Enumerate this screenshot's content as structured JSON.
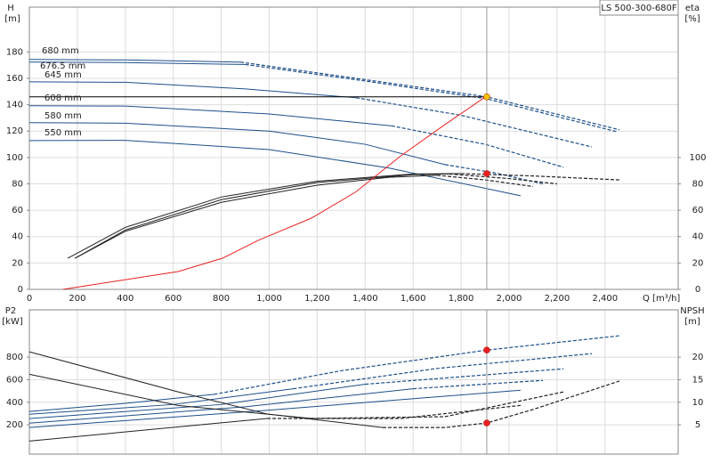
{
  "chart_data": [
    {
      "type": "line",
      "model": "LS 500-300-680F",
      "ylabel": "H",
      "yunit": "[m]",
      "y2label": "eta",
      "y2unit": "[%]",
      "xlabel": "Q [m³/h]",
      "curve_labels": [
        "680 mm",
        "676.5 mm",
        "645 mm",
        "608 mm",
        "580 mm",
        "550 mm"
      ],
      "xlim": [
        0,
        2705
      ],
      "ylim": [
        0,
        214
      ],
      "y2lim": [
        0,
        214
      ],
      "grid": true,
      "xticks": [
        0,
        200,
        400,
        600,
        800,
        {
          "value": 1000,
          "label": "1,000"
        },
        {
          "value": 1200,
          "label": "1,200"
        },
        {
          "value": 1400,
          "label": "1,400"
        },
        {
          "value": 1600,
          "label": "1,600"
        },
        {
          "value": 1800,
          "label": "1,800"
        },
        {
          "value": 2000,
          "label": "2,000"
        },
        {
          "value": 2200,
          "label": "2,200"
        },
        {
          "value": 2400,
          "label": "2,400"
        }
      ],
      "yticks": [
        0,
        20,
        40,
        60,
        80,
        100,
        120,
        140,
        160,
        180
      ],
      "y2ticks": [
        0,
        20,
        40,
        60,
        80,
        100
      ],
      "series": [
        {
          "color": "#1d4f8a",
          "dash": false,
          "x": [
            0,
            400,
            880
          ],
          "values": [
            174.3,
            174,
            172.3
          ]
        },
        {
          "color": "#1d4f8a",
          "dash": true,
          "x": [
            880,
            1362,
            1907,
            2460
          ],
          "values": [
            172.3,
            160,
            146,
            121
          ]
        },
        {
          "color": "#1d4f8a",
          "dash": false,
          "x": [
            0,
            400,
            900
          ],
          "values": [
            172.3,
            172,
            170.5
          ]
        },
        {
          "color": "#1d4f8a",
          "dash": true,
          "x": [
            900,
            1400,
            1907,
            2450
          ],
          "values": [
            170.5,
            158,
            144.5,
            119.5
          ]
        },
        {
          "color": "#1d4f8a",
          "dash": false,
          "x": [
            0,
            400,
            900,
            1362
          ],
          "values": [
            157.4,
            157,
            152,
            145.3
          ]
        },
        {
          "color": "#1d4f8a",
          "dash": true,
          "x": [
            1362,
            1800,
            2345
          ],
          "values": [
            145.3,
            132,
            108
          ]
        },
        {
          "color": "#1d4f8a",
          "dash": false,
          "x": [
            0,
            400,
            1000,
            1510
          ],
          "values": [
            139.2,
            139,
            133,
            124
          ]
        },
        {
          "color": "#1d4f8a",
          "dash": true,
          "x": [
            1510,
            1900,
            2227
          ],
          "values": [
            124,
            110,
            92.6
          ]
        },
        {
          "color": "#1d4f8a",
          "dash": false,
          "x": [
            0,
            400,
            1000,
            1400,
            1733
          ],
          "values": [
            126.4,
            126,
            120,
            110,
            94.6
          ]
        },
        {
          "color": "#1d4f8a",
          "dash": true,
          "x": [
            1733,
            1950,
            2141
          ],
          "values": [
            94.6,
            88,
            80
          ]
        },
        {
          "color": "#1d4f8a",
          "dash": false,
          "x": [
            0,
            400,
            1000,
            1500,
            2048
          ],
          "values": [
            112.8,
            113,
            106,
            92,
            71
          ]
        },
        {
          "color": "#222222",
          "dash": false,
          "axis": "y2",
          "x": [
            160,
            400,
            800,
            1200,
            1600,
            1800
          ],
          "values": [
            23.6,
            47,
            70,
            82,
            87.5,
            87.8
          ]
        },
        {
          "color": "#222222",
          "dash": true,
          "axis": "y2",
          "x": [
            1800,
            2100,
            2460
          ],
          "values": [
            87.8,
            86,
            83
          ]
        },
        {
          "color": "#222222",
          "dash": false,
          "axis": "y2",
          "x": [
            190,
            400,
            800,
            1200,
            1600,
            1750
          ],
          "values": [
            23.6,
            45,
            68,
            81,
            87,
            87.5
          ]
        },
        {
          "color": "#222222",
          "dash": true,
          "axis": "y2",
          "x": [
            1750,
            2000,
            2200
          ],
          "values": [
            87.5,
            84,
            80
          ]
        },
        {
          "color": "#222222",
          "dash": false,
          "axis": "y2",
          "x": [
            190,
            400,
            800,
            1200,
            1500,
            1700
          ],
          "values": [
            23.6,
            44,
            66,
            79,
            85,
            86.5
          ]
        },
        {
          "color": "#222222",
          "dash": true,
          "axis": "y2",
          "x": [
            1700,
            1900,
            2100
          ],
          "values": [
            86.5,
            83,
            78
          ]
        },
        {
          "color": "#e82020",
          "dash": false,
          "x": [
            140,
            620,
            805,
            954,
            1176,
            1362,
            1547,
            1733,
            1907
          ],
          "values": [
            0,
            13.5,
            23.6,
            37.2,
            54,
            74,
            101,
            125,
            146.6
          ]
        },
        {
          "color": "#000000",
          "dash": false,
          "x": [
            0,
            1907
          ],
          "values": [
            146,
            146
          ]
        },
        {
          "color": "#999999",
          "dash": false,
          "x": [
            1907,
            1907
          ],
          "values": [
            0,
            214
          ]
        },
        {
          "color": "#f5c400",
          "marker": true,
          "x": [
            1907
          ],
          "values": [
            146
          ]
        },
        {
          "color": "#e82020",
          "marker": true,
          "axis": "y2",
          "x": [
            1907
          ],
          "values": [
            87.8
          ]
        }
      ]
    },
    {
      "type": "line",
      "ylabel": "P2",
      "yunit": "[kW]",
      "y2label": "NPSH",
      "y2unit": "[m]",
      "xlim": [
        0,
        2705
      ],
      "ylim": [
        -60,
        1220
      ],
      "y2lim": [
        -1.5,
        30.5
      ],
      "grid": true,
      "xgrid": [
        200,
        400,
        600,
        800,
        1000,
        1200,
        1400,
        1600,
        1800,
        2000,
        2200,
        2400
      ],
      "yticks": [
        200,
        400,
        600,
        800
      ],
      "y2ticks": [
        5,
        10,
        15,
        20
      ],
      "series": [
        {
          "color": "#1d4f8a",
          "dash": false,
          "x": [
            0,
            400,
            770
          ],
          "values": [
            318,
            390,
            470
          ]
        },
        {
          "color": "#1d4f8a",
          "dash": true,
          "x": [
            770,
            1300,
            1907,
            2460
          ],
          "values": [
            470,
            680,
            863,
            990
          ]
        },
        {
          "color": "#1d4f8a",
          "dash": false,
          "x": [
            0,
            600,
            1100
          ],
          "values": [
            294,
            380,
            520
          ]
        },
        {
          "color": "#1d4f8a",
          "dash": true,
          "x": [
            1100,
            1700,
            2345
          ],
          "values": [
            520,
            700,
            832
          ]
        },
        {
          "color": "#1d4f8a",
          "dash": false,
          "x": [
            0,
            800,
            1400
          ],
          "values": [
            255,
            380,
            560
          ]
        },
        {
          "color": "#1d4f8a",
          "dash": true,
          "x": [
            1400,
            2227
          ],
          "values": [
            560,
            697
          ]
        },
        {
          "color": "#1d4f8a",
          "dash": false,
          "x": [
            0,
            900,
            1600
          ],
          "values": [
            215,
            360,
            520
          ]
        },
        {
          "color": "#1d4f8a",
          "dash": true,
          "x": [
            1600,
            2141
          ],
          "values": [
            520,
            594
          ]
        },
        {
          "color": "#1d4f8a",
          "dash": false,
          "x": [
            0,
            1000,
            2048
          ],
          "values": [
            176,
            330,
            507
          ]
        },
        {
          "color": "#222222",
          "dash": false,
          "axis": "y2",
          "x": [
            0,
            620,
            991,
            1473
          ],
          "values": [
            21.2,
            12.3,
            7.4,
            4.4
          ]
        },
        {
          "color": "#222222",
          "dash": true,
          "axis": "y2",
          "x": [
            1473,
            1733,
            1907,
            2100,
            2460
          ],
          "values": [
            4.4,
            4.4,
            5.4,
            8.4,
            14.7
          ]
        },
        {
          "color": "#222222",
          "dash": false,
          "axis": "y2",
          "x": [
            0,
            620,
            1176
          ],
          "values": [
            16.2,
            9.3,
            6.4
          ]
        },
        {
          "color": "#222222",
          "dash": true,
          "axis": "y2",
          "x": [
            1176,
            1733,
            2227
          ],
          "values": [
            6.4,
            6.8,
            12.3
          ]
        },
        {
          "color": "#222222",
          "dash": false,
          "axis": "y2",
          "x": [
            0,
            991
          ],
          "values": [
            1.4,
            6.4
          ]
        },
        {
          "color": "#222222",
          "dash": true,
          "axis": "y2",
          "x": [
            991,
            1547,
            2048
          ],
          "values": [
            6.4,
            6.4,
            9.3
          ]
        },
        {
          "color": "#999999",
          "dash": false,
          "x": [
            1907,
            1907
          ],
          "values": [
            -60,
            1220
          ]
        },
        {
          "color": "#e82020",
          "marker": true,
          "x": [
            1907
          ],
          "values": [
            863
          ]
        },
        {
          "color": "#e82020",
          "marker": true,
          "axis": "y2",
          "x": [
            1907
          ],
          "values": [
            5.4
          ]
        }
      ]
    }
  ]
}
